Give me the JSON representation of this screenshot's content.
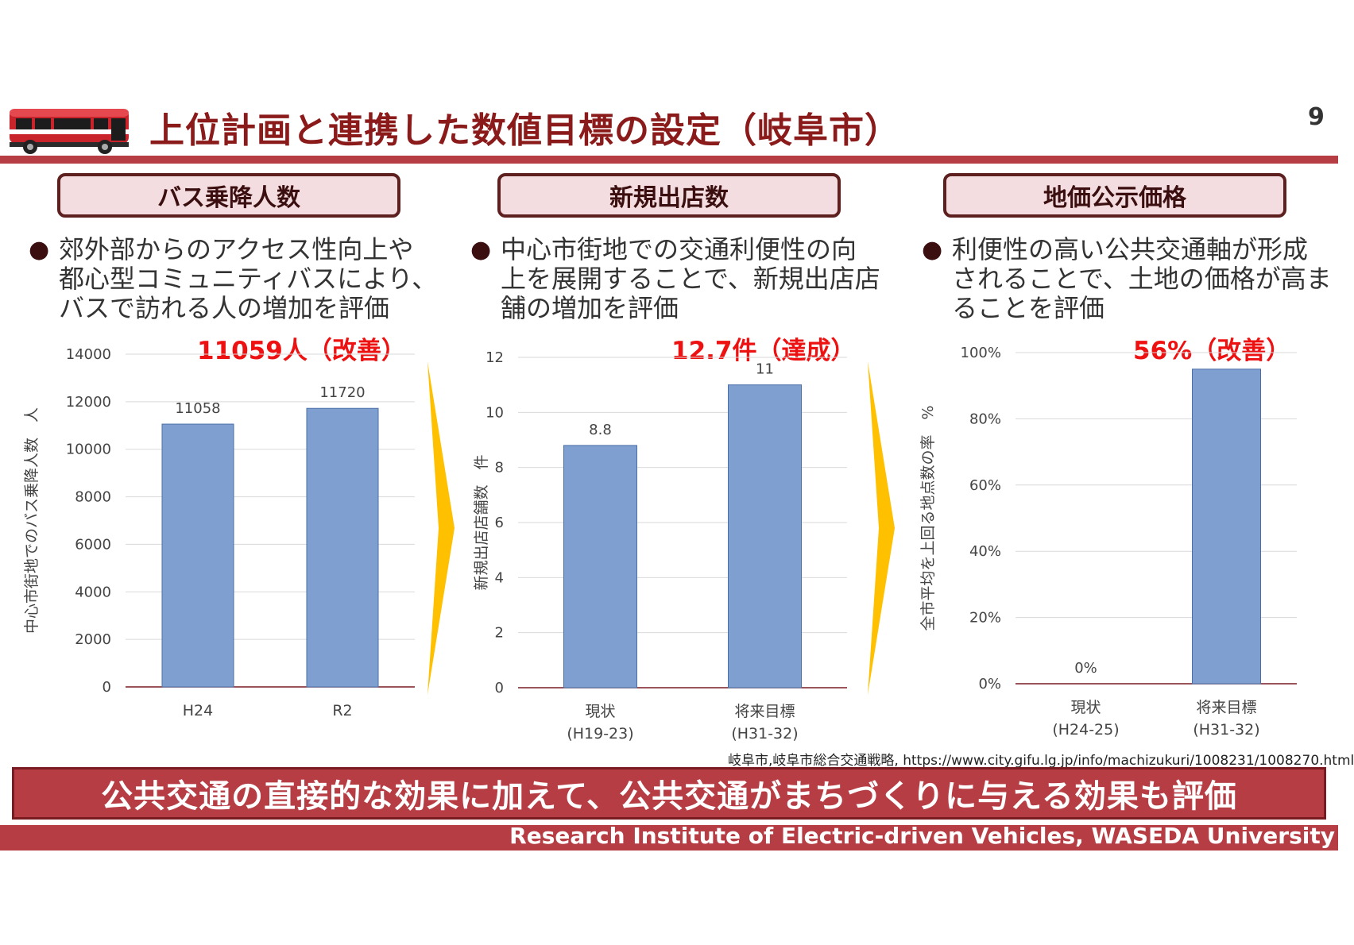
{
  "header": {
    "title": "上位計画と連携した数値目標の設定（岐阜市）",
    "page_number": "9",
    "accent_color": "#b73d45"
  },
  "panels": [
    {
      "heading": "バス乗降人数",
      "bullet_lines": [
        "郊外部からのアクセス性向上や",
        "都心型コミュニティバスにより、",
        "バスで訪れる人の増加を評価"
      ],
      "result": "11059人（改善）"
    },
    {
      "heading": "新規出店数",
      "bullet_lines": [
        "中心市街地での交通利便性の向",
        "上を展開することで、新規出店店",
        "舗の増加を評価"
      ],
      "result": "12.7件（達成）"
    },
    {
      "heading": "地価公示価格",
      "bullet_lines": [
        "利便性の高い公共交通軸が形成",
        "されることで、土地の価格が高ま",
        "ることを評価"
      ],
      "result": "56%（改善）"
    }
  ],
  "chart_data": [
    {
      "type": "bar",
      "categories": [
        "H24",
        "R2"
      ],
      "values": [
        11058,
        11720
      ],
      "data_labels": [
        "11058",
        "11720"
      ],
      "ylabel": "中心市街地でのバス乗降人数　人",
      "ylim": [
        0,
        14000
      ],
      "yticks": [
        "0",
        "2000",
        "4000",
        "6000",
        "8000",
        "10000",
        "12000",
        "14000"
      ],
      "bar_color": "#7f9fd0",
      "grid": true
    },
    {
      "type": "bar",
      "categories": [
        [
          "現状",
          "(H19-23)"
        ],
        [
          "将来目標",
          "(H31-32)"
        ]
      ],
      "values": [
        8.8,
        11
      ],
      "data_labels": [
        "8.8",
        "11"
      ],
      "ylabel": "新規出店店舗数　件",
      "ylim": [
        0,
        12
      ],
      "yticks": [
        "0",
        "2",
        "4",
        "6",
        "8",
        "10",
        "12"
      ],
      "bar_color": "#7f9fd0",
      "grid": true
    },
    {
      "type": "bar",
      "categories": [
        [
          "現状",
          "(H24-25)"
        ],
        [
          "将来目標",
          "(H31-32)"
        ]
      ],
      "values": [
        0,
        0.95
      ],
      "data_labels": [
        "0%",
        ""
      ],
      "ylabel": "全市平均を上回る地点数の率　%",
      "ylim": [
        0,
        1
      ],
      "yticks": [
        "0%",
        "20%",
        "40%",
        "60%",
        "80%",
        "100%"
      ],
      "bar_color": "#7f9fd0",
      "grid": true
    }
  ],
  "citation": "岐阜市,岐阜市総合交通戦略, https://www.city.gifu.lg.jp/info/machizukuri/1008231/1008270.html",
  "conclusion": "公共交通の直接的な効果に加えて、公共交通がまちづくりに与える効果も評価",
  "footer": "Research Institute of Electric-driven Vehicles, WASEDA University"
}
